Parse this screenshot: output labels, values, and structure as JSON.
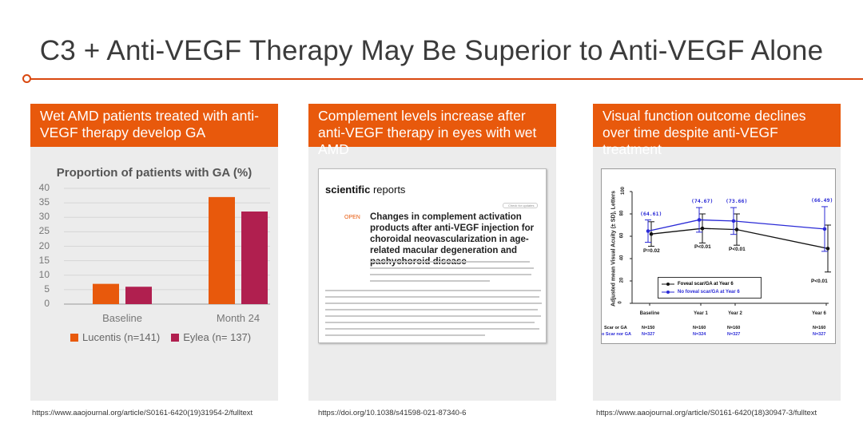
{
  "title": "C3 + Anti-VEGF Therapy May Be Superior to Anti-VEGF Alone",
  "colors": {
    "accent": "#e8590c",
    "lucentis": "#e8590c",
    "eylea": "#b01f4f",
    "foveal": "#111111",
    "no_foveal": "#2a2ad6"
  },
  "panels": [
    {
      "header": "Wet AMD patients treated with anti-VEGF therapy develop GA",
      "url": "https://www.aaojournal.org/article/S0161-6420(19)31954-2/fulltext",
      "chart_title": "Proportion of patients with GA (%)",
      "legend": [
        "Lucentis (n=141)",
        "Eylea (n= 137)"
      ]
    },
    {
      "header": "Complement levels increase after anti-VEGF therapy in eyes with wet AMD",
      "url": "https://doi.org/10.1038/s41598-021-87340-6",
      "journal_bold": "scientific",
      "journal_rest": " reports",
      "check_label": "Check for updates",
      "open_label": "OPEN",
      "paper_title": "Changes in complement activation products after anti-VEGF injection for choroidal neovascularization in age-related macular degeneration and pachychoroid disease"
    },
    {
      "header": "Visual function outcome declines over time despite anti-VEGF treatment",
      "url": "https://www.aaojournal.org/article/S0161-6420(18)30947-3/fulltext",
      "ylabel": "Adjusted mean Visual Acuity (± SD), Letters",
      "legend": [
        "Foveal scar/GA at Year 6",
        "No foveal scar/GA at Year 6"
      ],
      "row_labels": [
        "Scar or GA",
        "o Scar nor GA"
      ],
      "row_counts_1": [
        "N=150",
        "N=160",
        "N=160",
        "N=160"
      ],
      "row_counts_2": [
        "N=327",
        "N=324",
        "N=327",
        "N=327"
      ],
      "pvalues": [
        "P=0.02",
        "P<0.01",
        "P<0.01",
        "P<0.01"
      ],
      "point_labels": [
        "(64.61)",
        "(74.67)",
        "(73.66)",
        "(66.49)"
      ]
    }
  ],
  "chart_data": [
    {
      "type": "bar",
      "title": "Proportion of patients with GA (%)",
      "categories": [
        "Baseline",
        "Month 24"
      ],
      "series": [
        {
          "name": "Lucentis (n=141)",
          "values": [
            7,
            37
          ]
        },
        {
          "name": "Eylea (n= 137)",
          "values": [
            6,
            32
          ]
        }
      ],
      "ylim": [
        0,
        40
      ],
      "yticks": [
        0,
        5,
        10,
        15,
        20,
        25,
        30,
        35,
        40
      ],
      "legend": "bottom"
    },
    {
      "type": "line",
      "categories": [
        "Baseline",
        "Year 1",
        "Year 2",
        "Year 6"
      ],
      "x": [
        0,
        1,
        2,
        6
      ],
      "ylim": [
        0,
        100
      ],
      "yticks": [
        0,
        20,
        40,
        60,
        80,
        100
      ],
      "series": [
        {
          "name": "Foveal scar/GA at Year 6",
          "values": [
            62,
            67,
            66,
            49
          ],
          "err": [
            11,
            13,
            14,
            21
          ]
        },
        {
          "name": "No foveal scar/GA at Year 6",
          "values": [
            64.61,
            74.67,
            73.66,
            66.49
          ],
          "err": [
            10,
            11,
            12,
            20
          ]
        }
      ],
      "legend": "bottom-left"
    }
  ]
}
